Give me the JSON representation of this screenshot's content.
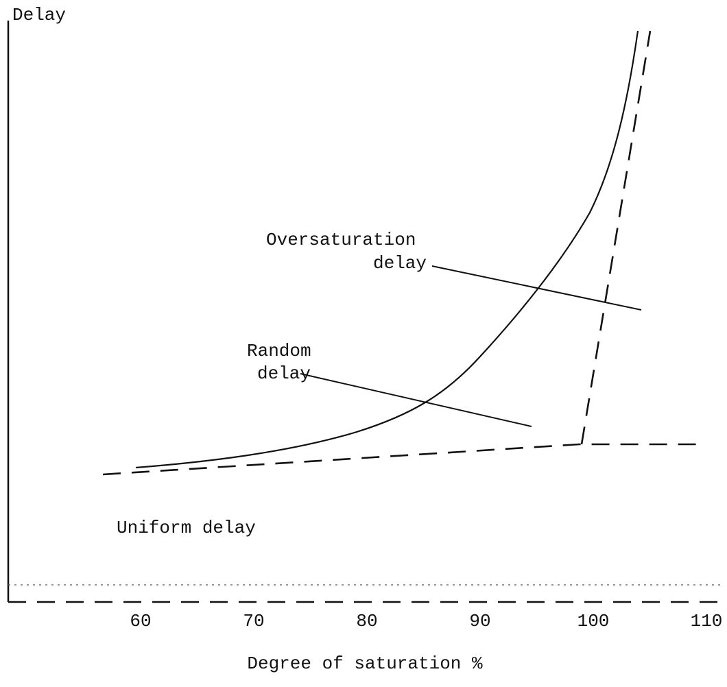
{
  "y_axis_label": "Delay",
  "x_axis_label": "Degree of saturation %",
  "x_ticks": [
    "60",
    "70",
    "80",
    "90",
    "100",
    "110"
  ],
  "annotations": {
    "oversaturation": [
      "Oversaturation",
      "delay"
    ],
    "random": [
      "Random",
      "delay"
    ],
    "uniform": "Uniform delay"
  }
}
